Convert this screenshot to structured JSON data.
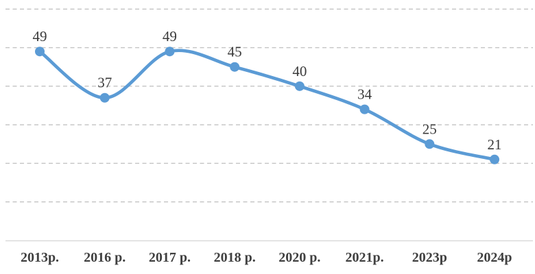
{
  "chart_data": {
    "type": "line",
    "title": "",
    "xlabel": "",
    "ylabel": "",
    "categories": [
      "2013р.",
      "2016 р.",
      "2017 р.",
      "2018 р.",
      "2020 р.",
      "2021р.",
      "2023p",
      "2024p"
    ],
    "values": [
      49,
      37,
      49,
      45,
      40,
      34,
      25,
      21
    ],
    "data_labels_visible": true,
    "ylim": [
      0,
      60
    ],
    "grid_step": 10,
    "grid": "horizontal-dashed",
    "smooth_line": true,
    "legend": "none",
    "colors": {
      "line": "#5b9bd5",
      "marker": "#5b9bd5",
      "gridline": "#c3c3c3",
      "axis_line": "#d9d9d9",
      "data_label": "#3a3a3a",
      "axis_label": "#404040",
      "background": "#ffffff"
    }
  }
}
